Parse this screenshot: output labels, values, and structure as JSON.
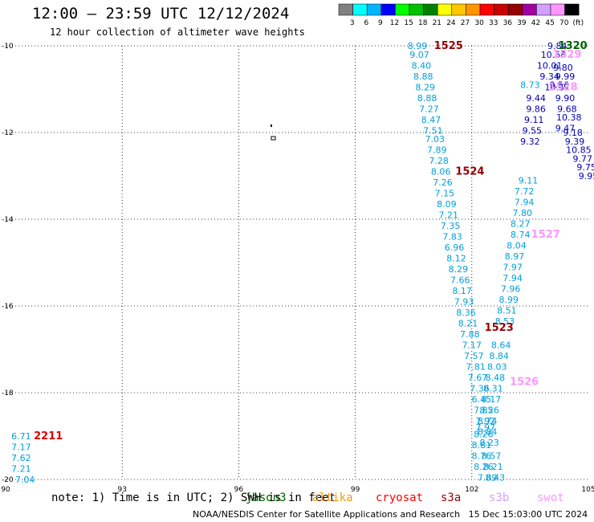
{
  "header": {
    "title": "12:00 — 23:59 UTC 12/12/2024",
    "subtitle": "12 hour collection of altimeter wave heights"
  },
  "legend": {
    "colors": [
      "#808080",
      "#00ffff",
      "#00b4ff",
      "#0000ff",
      "#00ff00",
      "#00c000",
      "#008000",
      "#ffff00",
      "#ffc800",
      "#ff9600",
      "#ff0000",
      "#c80000",
      "#960000",
      "#a000a0",
      "#d2a0ff",
      "#ff96ff",
      "#000000"
    ],
    "labels": [
      "3",
      "6",
      "9",
      "12",
      "15",
      "18",
      "21",
      "24",
      "27",
      "30",
      "33",
      "36",
      "39",
      "42",
      "45",
      "70",
      "(ft)"
    ]
  },
  "footer": {
    "note": "note: 1) Time is in UTC; 2) SWH is in feet",
    "satellites": [
      {
        "name": "jason3",
        "color": "#006400"
      },
      {
        "name": "altika",
        "color": "#ff9600"
      },
      {
        "name": "cryosat",
        "color": "#ff0000"
      },
      {
        "name": "s3a",
        "color": "#960000"
      },
      {
        "name": "s3b",
        "color": "#d2a0ff"
      },
      {
        "name": "swot",
        "color": "#ff96ff"
      }
    ],
    "credit": "NOAA/NESDIS Center for Satellite Applications and Research   15 Dec 15:03:00 UTC 2024"
  },
  "chart_data": {
    "type": "scatter",
    "title": "12:00 — 23:59 UTC 12/12/2024",
    "subtitle": "12 hour collection of altimeter wave heights",
    "xlim": [
      90,
      105
    ],
    "ylim": [
      -20,
      -10
    ],
    "xticks": [
      "90",
      "93",
      "96",
      "99",
      "102",
      "105"
    ],
    "yticks": [
      "-10",
      "-12",
      "-14",
      "-16",
      "-18",
      "-20"
    ],
    "grid": true,
    "units": "ft",
    "colors": {
      "s3b": "#00a0dc",
      "cryosat": "#0000b4",
      "s3a": "#960000",
      "swot": "#ff96ff",
      "jason3": "#006400",
      "altika": "#dc0000"
    },
    "labels": [
      {
        "text": "1525",
        "x": 101.4,
        "y": -10.0,
        "c": "s3a",
        "kind": "pass"
      },
      {
        "text": "1524",
        "x": 101.95,
        "y": -12.9,
        "c": "s3a",
        "kind": "pass"
      },
      {
        "text": "1523",
        "x": 102.7,
        "y": -16.5,
        "c": "s3a",
        "kind": "pass"
      },
      {
        "text": "1320",
        "x": 104.6,
        "y": -10.0,
        "c": "jason3",
        "kind": "pass"
      },
      {
        "text": "1529",
        "x": 104.45,
        "y": -10.2,
        "c": "swot",
        "kind": "pass"
      },
      {
        "text": "1528",
        "x": 104.35,
        "y": -10.95,
        "c": "swot",
        "kind": "pass"
      },
      {
        "text": "1527",
        "x": 103.9,
        "y": -14.35,
        "c": "swot",
        "kind": "pass"
      },
      {
        "text": "1526",
        "x": 103.35,
        "y": -17.75,
        "c": "swot",
        "kind": "pass"
      },
      {
        "text": "2211",
        "x": 91.1,
        "y": -19.0,
        "c": "altika",
        "kind": "pass"
      }
    ],
    "series": [
      {
        "name": "s3b",
        "color_key": "s3b",
        "points": [
          [
            100.6,
            -10.0,
            "8.99"
          ],
          [
            100.65,
            -10.2,
            "9.07"
          ],
          [
            100.7,
            -10.45,
            "8.40"
          ],
          [
            100.75,
            -10.7,
            "8.88"
          ],
          [
            100.8,
            -10.95,
            "8.29"
          ],
          [
            100.85,
            -11.2,
            "8.88"
          ],
          [
            100.9,
            -11.45,
            "7.27"
          ],
          [
            100.95,
            -11.7,
            "8.47"
          ],
          [
            101.0,
            -11.95,
            "7.51"
          ],
          [
            101.05,
            -12.15,
            "7.03"
          ],
          [
            101.1,
            -12.4,
            "7.89"
          ],
          [
            101.15,
            -12.65,
            "7.28"
          ],
          [
            101.2,
            -12.9,
            "8.06"
          ],
          [
            101.25,
            -13.15,
            "7.26"
          ],
          [
            101.3,
            -13.4,
            "7.15"
          ],
          [
            101.35,
            -13.65,
            "8.09"
          ],
          [
            101.4,
            -13.9,
            "7.21"
          ],
          [
            101.45,
            -14.15,
            "7.35"
          ],
          [
            101.5,
            -14.4,
            "7.83"
          ],
          [
            101.55,
            -14.65,
            "6.96"
          ],
          [
            101.6,
            -14.9,
            "8.12"
          ],
          [
            101.65,
            -15.15,
            "8.29"
          ],
          [
            101.7,
            -15.4,
            "7.66"
          ],
          [
            101.75,
            -15.65,
            "8.17"
          ],
          [
            101.8,
            -15.9,
            "7.93"
          ],
          [
            101.85,
            -16.15,
            "8.36"
          ],
          [
            101.9,
            -16.4,
            "8.21"
          ],
          [
            101.95,
            -16.65,
            "7.88"
          ],
          [
            102.0,
            -16.9,
            "7.17"
          ],
          [
            102.05,
            -17.15,
            "7.57"
          ],
          [
            102.1,
            -17.4,
            "7.81"
          ],
          [
            102.15,
            -17.65,
            "7.67"
          ],
          [
            102.2,
            -17.9,
            "7.36"
          ],
          [
            102.25,
            -18.15,
            "6.45"
          ],
          [
            102.3,
            -18.4,
            "7.85"
          ],
          [
            102.35,
            -18.65,
            "7.92"
          ],
          [
            102.35,
            -18.8,
            "7.97"
          ],
          [
            102.3,
            -18.95,
            "8.26"
          ],
          [
            102.25,
            -19.2,
            "8.81"
          ],
          [
            102.25,
            -19.45,
            "8.76"
          ],
          [
            102.3,
            -19.7,
            "8.26"
          ],
          [
            102.4,
            -19.95,
            "7.89"
          ],
          [
            103.5,
            -10.9,
            "8.73"
          ],
          [
            103.45,
            -13.1,
            "9.11"
          ],
          [
            103.35,
            -13.35,
            "7.72"
          ],
          [
            103.35,
            -13.6,
            "7.94"
          ],
          [
            103.3,
            -13.85,
            "7.80"
          ],
          [
            103.25,
            -14.1,
            "8.27"
          ],
          [
            103.25,
            -14.35,
            "8.74"
          ],
          [
            103.15,
            -14.6,
            "8.04"
          ],
          [
            103.1,
            -14.85,
            "8.97"
          ],
          [
            103.05,
            -15.1,
            "7.97"
          ],
          [
            103.05,
            -15.35,
            "7.94"
          ],
          [
            103.0,
            -15.6,
            "7.96"
          ],
          [
            102.95,
            -15.85,
            "8.99"
          ],
          [
            102.9,
            -16.1,
            "8.51"
          ],
          [
            102.85,
            -16.35,
            "8.53"
          ],
          [
            102.75,
            -16.9,
            "8.64"
          ],
          [
            102.7,
            -17.15,
            "8.84"
          ],
          [
            102.65,
            -17.4,
            "8.03"
          ],
          [
            102.6,
            -17.65,
            "8.48"
          ],
          [
            102.55,
            -17.9,
            "8.31"
          ],
          [
            102.5,
            -18.15,
            "8.17"
          ],
          [
            102.45,
            -18.4,
            "8.26"
          ],
          [
            102.4,
            -18.65,
            "8.74"
          ],
          [
            102.4,
            -18.9,
            "8.84"
          ],
          [
            102.45,
            -19.15,
            "8.23"
          ],
          [
            102.5,
            -19.45,
            "8.57"
          ],
          [
            102.55,
            -19.7,
            "8.21"
          ],
          [
            102.6,
            -19.95,
            "8.43"
          ]
        ]
      },
      {
        "name": "cryosat",
        "color_key": "cryosat",
        "points": [
          [
            104.2,
            -10.0,
            "9.84"
          ],
          [
            104.1,
            -10.2,
            "10.68"
          ],
          [
            104.0,
            -10.45,
            "10.01"
          ],
          [
            104.0,
            -10.7,
            "9.34"
          ],
          [
            104.35,
            -10.5,
            "9.80"
          ],
          [
            104.4,
            -10.7,
            "9.99"
          ],
          [
            104.25,
            -10.9,
            "9.56"
          ],
          [
            104.2,
            -10.95,
            "10.57"
          ],
          [
            103.65,
            -11.2,
            "9.44"
          ],
          [
            104.4,
            -11.2,
            "9.90"
          ],
          [
            103.65,
            -11.45,
            "9.86"
          ],
          [
            104.45,
            -11.45,
            "9.68"
          ],
          [
            104.5,
            -11.65,
            "10.38"
          ],
          [
            103.6,
            -11.7,
            "9.11"
          ],
          [
            104.4,
            -11.9,
            "9.47"
          ],
          [
            103.55,
            -11.95,
            "9.55"
          ],
          [
            104.6,
            -12.0,
            "9.18"
          ],
          [
            103.5,
            -12.2,
            "9.32"
          ],
          [
            104.65,
            -12.2,
            "9.39"
          ],
          [
            104.75,
            -12.4,
            "10.85"
          ],
          [
            104.85,
            -12.6,
            "9.77"
          ],
          [
            104.95,
            -12.8,
            "9.75"
          ],
          [
            105.0,
            -13.0,
            "9.95"
          ]
        ]
      },
      {
        "name": "altika",
        "color_key": "s3b",
        "points": [
          [
            90.4,
            -19.0,
            "6.71"
          ],
          [
            90.4,
            -19.25,
            "7.17"
          ],
          [
            90.4,
            -19.5,
            "7.62"
          ],
          [
            90.4,
            -19.75,
            "7.21"
          ],
          [
            90.5,
            -20.0,
            "7.04"
          ]
        ]
      }
    ]
  }
}
